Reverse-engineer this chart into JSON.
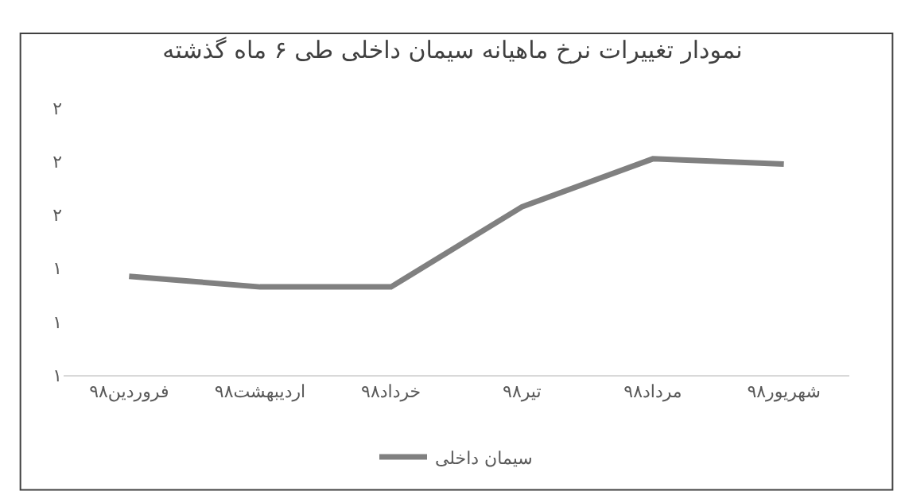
{
  "chart_data": {
    "type": "line",
    "title": "نمودار تغییرات نرخ ماهیانه سیمان داخلی طی ۶ ماه گذشته",
    "categories": [
      "فروردین۹۸",
      "اردیبهشت۹۸",
      "خرداد۹۸",
      "تیر۹۸",
      "مرداد۹۸",
      "شهریور۹۸"
    ],
    "series": [
      {
        "name": "سیمان داخلی",
        "color": "#808080",
        "values": [
          1.37,
          1.33,
          1.33,
          1.63,
          1.81,
          1.79
        ]
      }
    ],
    "ylim": [
      1.0,
      2.0
    ],
    "yticks": [
      {
        "value": 1.0,
        "label": "۱"
      },
      {
        "value": 1.2,
        "label": "۱"
      },
      {
        "value": 1.4,
        "label": "۱"
      },
      {
        "value": 1.6,
        "label": "۲"
      },
      {
        "value": 1.8,
        "label": "۲"
      },
      {
        "value": 2.0,
        "label": "۲"
      }
    ],
    "legend": "bottom",
    "marker": "none",
    "line_style": "solid"
  }
}
